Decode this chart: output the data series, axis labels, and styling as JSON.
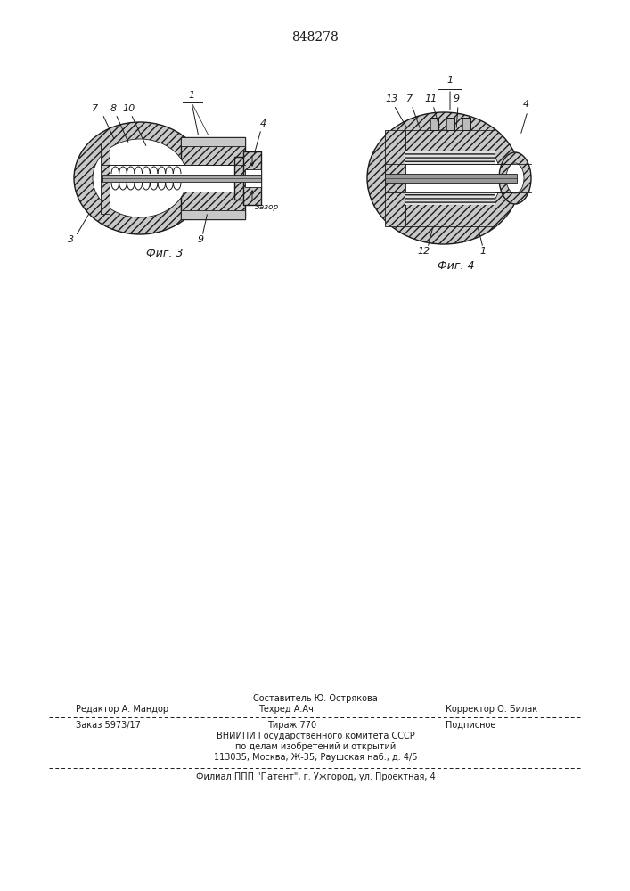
{
  "patent_number": "848278",
  "bg": "#ffffff",
  "lc": "#1a1a1a",
  "fig3_label": "Фиг. 3",
  "fig4_label": "Фиг. 4",
  "footer": {
    "line1_center": "Составитель Ю. Острякова",
    "line2_left": "Редактор А. Мандор",
    "line2_mid": "Техред А.Ач",
    "line2_right": "Корректор О. Билак",
    "line3_left": "Заказ 5973/17",
    "line3_mid": "Тираж 770",
    "line3_right": "Подписное",
    "line4": "ВНИИПИ Государственного комитета СССР",
    "line5": "по делам изобретений и открытий",
    "line6": "113035, Москва, Ж-35, Раушская наб., д. 4/5",
    "line7": "Филиал ППП \"Патент\", г. Ужгород, ул. Проектная, 4"
  }
}
